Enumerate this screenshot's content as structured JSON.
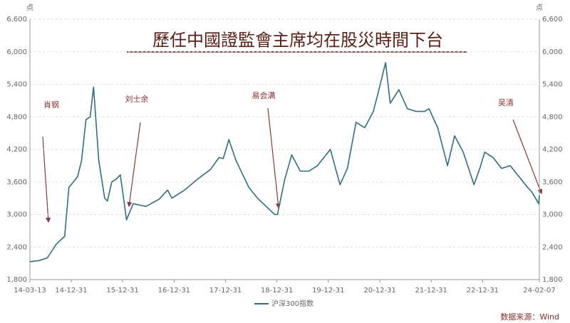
{
  "chart_data": {
    "type": "line",
    "title": "歷任中國證監會主席均在股災時間下台",
    "y_unit": "点",
    "annotations": [
      "肖钢",
      "刘士余",
      "易会满",
      "吴清"
    ],
    "source": "数据来源：Wind",
    "x": [
      "14-03-13",
      "14-05-15",
      "14-07-15",
      "14-09-15",
      "14-11-15",
      "14-12-15",
      "15-01-15",
      "15-02-15",
      "15-03-15",
      "15-04-15",
      "15-05-15",
      "15-06-08",
      "15-07-15",
      "15-08-26",
      "15-09-15",
      "15-10-15",
      "15-11-15",
      "15-12-15",
      "16-01-28",
      "16-03-15",
      "16-06-15",
      "16-09-15",
      "16-11-15",
      "16-12-15",
      "17-03-15",
      "17-06-15",
      "17-09-15",
      "17-11-15",
      "17-12-15",
      "18-01-24",
      "18-03-15",
      "18-06-15",
      "18-08-15",
      "18-10-15",
      "18-12-15",
      "19-01-04",
      "19-02-25",
      "19-04-15",
      "19-06-15",
      "19-08-15",
      "19-10-15",
      "19-12-15",
      "20-01-15",
      "20-03-23",
      "20-05-15",
      "20-07-15",
      "20-09-15",
      "20-11-15",
      "20-12-15",
      "21-02-10",
      "21-03-15",
      "21-05-15",
      "21-07-15",
      "21-09-15",
      "21-11-15",
      "21-12-15",
      "22-02-15",
      "22-04-26",
      "22-06-15",
      "22-08-15",
      "22-10-31",
      "22-12-15",
      "23-01-15",
      "23-03-15",
      "23-05-15",
      "23-07-15",
      "23-09-15",
      "23-11-15",
      "23-12-15",
      "24-02-02",
      "24-02-07"
    ],
    "series": [
      {
        "name": "沪深300指数",
        "color": "#2f6f7f",
        "values": [
          2130,
          2150,
          2200,
          2450,
          2600,
          3500,
          3600,
          3700,
          4000,
          4750,
          4800,
          5350,
          4000,
          3300,
          3250,
          3600,
          3650,
          3730,
          2900,
          3200,
          3150,
          3280,
          3450,
          3300,
          3450,
          3650,
          3830,
          4050,
          4030,
          4380,
          4000,
          3500,
          3300,
          3150,
          3000,
          3000,
          3650,
          4100,
          3800,
          3800,
          3900,
          4100,
          4200,
          3550,
          3850,
          4700,
          4600,
          4900,
          5200,
          5800,
          5050,
          5300,
          4950,
          4900,
          4900,
          4950,
          4600,
          3900,
          4450,
          4150,
          3550,
          3880,
          4150,
          4050,
          3850,
          3900,
          3700,
          3500,
          3420,
          3200,
          3350
        ]
      }
    ],
    "xlim": [
      "14-03-13",
      "24-02-07"
    ],
    "xticks": [
      "14-03-13",
      "14-12-31",
      "15-12-31",
      "16-12-31",
      "17-12-31",
      "18-12-31",
      "19-12-31",
      "20-12-31",
      "21-12-31",
      "22-12-31",
      "24-02-07"
    ],
    "ylim": [
      1800,
      6600
    ],
    "yticks": [
      {
        "value": 1800,
        "label": "1,800"
      },
      {
        "value": 2400,
        "label": "2,400"
      },
      {
        "value": 3000,
        "label": "3,000"
      },
      {
        "value": 3600,
        "label": "3,600"
      },
      {
        "value": 4200,
        "label": "4,200"
      },
      {
        "value": 4800,
        "label": "4,800"
      },
      {
        "value": 5400,
        "label": "5,400"
      },
      {
        "value": 6000,
        "label": "6,000"
      },
      {
        "value": 6600,
        "label": "6,600"
      }
    ],
    "grid": true
  }
}
